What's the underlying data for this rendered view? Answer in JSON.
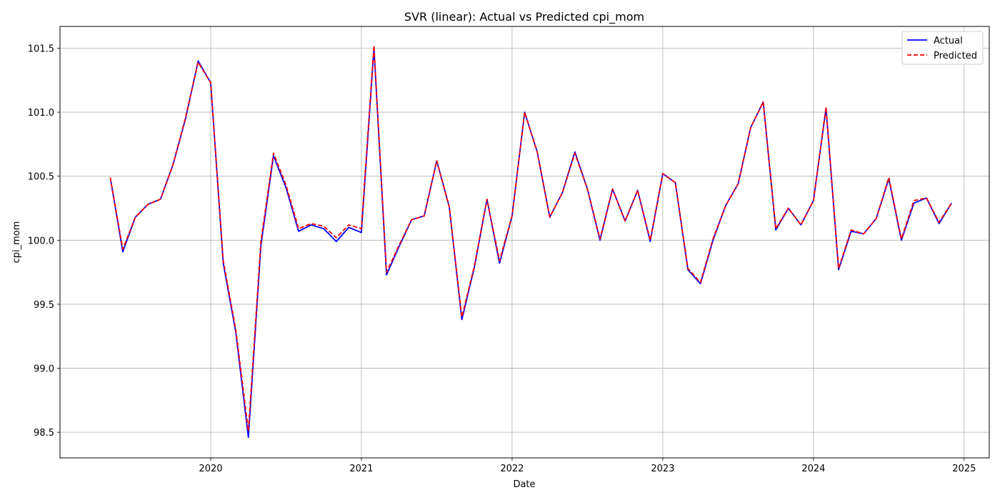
{
  "chart_data": {
    "type": "line",
    "title": "SVR (linear): Actual vs Predicted cpi_mom",
    "xlabel": "Date",
    "ylabel": "cpi_mom",
    "xlim": [
      "2019-01-01",
      "2025-03-01"
    ],
    "ylim": [
      98.3,
      101.67
    ],
    "x_ticks": [
      "2020",
      "2021",
      "2022",
      "2023",
      "2024",
      "2025"
    ],
    "y_ticks": [
      "98.5",
      "99.0",
      "99.5",
      "100.0",
      "100.5",
      "101.0",
      "101.5"
    ],
    "grid": true,
    "legend_position": "top-right",
    "x": [
      "2019-05",
      "2019-06",
      "2019-07",
      "2019-08",
      "2019-09",
      "2019-10",
      "2019-11",
      "2019-12",
      "2020-01",
      "2020-02",
      "2020-03",
      "2020-04",
      "2020-05",
      "2020-06",
      "2020-07",
      "2020-08",
      "2020-09",
      "2020-10",
      "2020-11",
      "2020-12",
      "2021-01",
      "2021-02",
      "2021-03",
      "2021-04",
      "2021-05",
      "2021-06",
      "2021-07",
      "2021-08",
      "2021-09",
      "2021-10",
      "2021-11",
      "2021-12",
      "2022-01",
      "2022-02",
      "2022-03",
      "2022-04",
      "2022-05",
      "2022-06",
      "2022-07",
      "2022-08",
      "2022-09",
      "2022-10",
      "2022-11",
      "2022-12",
      "2023-01",
      "2023-02",
      "2023-03",
      "2023-04",
      "2023-05",
      "2023-06",
      "2023-07",
      "2023-08",
      "2023-09",
      "2023-10",
      "2023-11",
      "2023-12",
      "2024-01",
      "2024-02",
      "2024-03",
      "2024-04",
      "2024-05",
      "2024-06",
      "2024-07",
      "2024-08",
      "2024-09",
      "2024-10",
      "2024-11",
      "2024-12"
    ],
    "series": [
      {
        "name": "Actual",
        "color": "#0000ff",
        "style": "solid",
        "values": [
          100.49,
          99.91,
          100.18,
          100.28,
          100.32,
          100.59,
          100.95,
          101.4,
          101.23,
          99.82,
          99.28,
          98.46,
          99.96,
          100.66,
          100.41,
          100.07,
          100.12,
          100.09,
          99.99,
          100.1,
          100.06,
          101.5,
          99.73,
          99.95,
          100.16,
          100.19,
          100.62,
          100.26,
          99.38,
          99.79,
          100.32,
          99.82,
          100.19,
          101.0,
          100.69,
          100.18,
          100.37,
          100.69,
          100.4,
          100.0,
          100.4,
          100.15,
          100.39,
          99.99,
          100.52,
          100.45,
          99.77,
          99.66,
          100.0,
          100.27,
          100.44,
          100.88,
          101.08,
          100.08,
          100.25,
          100.12,
          100.31,
          101.03,
          99.77,
          100.07,
          100.05,
          100.17,
          100.48,
          100.0,
          100.29,
          100.33,
          100.13,
          100.29
        ]
      },
      {
        "name": "Predicted",
        "color": "#ff0000",
        "style": "dashed",
        "values": [
          100.49,
          99.93,
          100.18,
          100.28,
          100.32,
          100.59,
          100.96,
          101.39,
          101.23,
          99.84,
          99.3,
          98.51,
          99.99,
          100.68,
          100.43,
          100.09,
          100.13,
          100.11,
          100.02,
          100.12,
          100.09,
          101.52,
          99.75,
          99.96,
          100.16,
          100.19,
          100.62,
          100.26,
          99.4,
          99.8,
          100.32,
          99.84,
          100.19,
          101.0,
          100.69,
          100.18,
          100.37,
          100.68,
          100.4,
          100.01,
          100.4,
          100.15,
          100.39,
          100.0,
          100.52,
          100.45,
          99.78,
          99.67,
          100.01,
          100.27,
          100.44,
          100.88,
          101.08,
          100.09,
          100.25,
          100.12,
          100.31,
          101.04,
          99.78,
          100.08,
          100.05,
          100.17,
          100.49,
          100.01,
          100.31,
          100.33,
          100.14,
          100.29
        ]
      }
    ]
  }
}
